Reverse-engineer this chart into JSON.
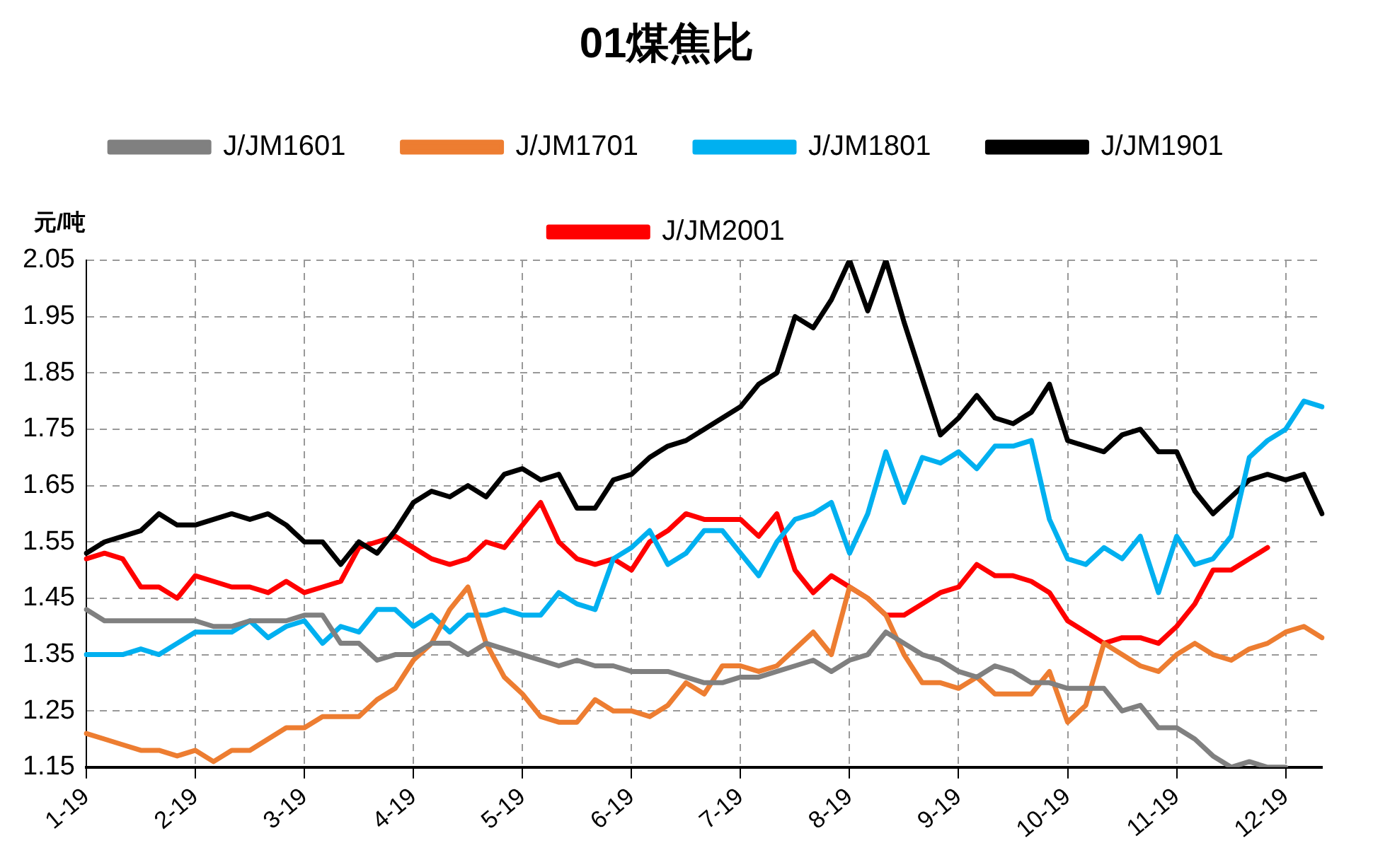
{
  "chart_data": {
    "type": "line",
    "title": "01煤焦比",
    "ylabel": "元/吨",
    "categories": [
      "1-19",
      null,
      null,
      null,
      null,
      null,
      "2-19",
      null,
      null,
      null,
      null,
      null,
      "3-19",
      null,
      null,
      null,
      null,
      null,
      "4-19",
      null,
      null,
      null,
      null,
      null,
      "5-19",
      null,
      null,
      null,
      null,
      null,
      "6-19",
      null,
      null,
      null,
      null,
      null,
      "7-19",
      null,
      null,
      null,
      null,
      null,
      "8-19",
      null,
      null,
      null,
      null,
      null,
      "9-19",
      null,
      null,
      null,
      null,
      null,
      "10-19",
      null,
      null,
      null,
      null,
      null,
      "11-19",
      null,
      null,
      null,
      null,
      null,
      "12-19",
      null,
      null
    ],
    "ylim": [
      1.15,
      2.05
    ],
    "yticks": [
      1.15,
      1.25,
      1.35,
      1.45,
      1.55,
      1.65,
      1.75,
      1.85,
      1.95,
      2.05
    ],
    "grid": true,
    "legend": "top",
    "series": [
      {
        "name": "J/JM1601",
        "color": "#808080",
        "values": [
          1.43,
          1.41,
          1.41,
          1.41,
          1.41,
          1.41,
          1.41,
          1.4,
          1.4,
          1.41,
          1.41,
          1.41,
          1.42,
          1.42,
          1.37,
          1.37,
          1.34,
          1.35,
          1.35,
          1.37,
          1.37,
          1.35,
          1.37,
          1.36,
          1.35,
          1.34,
          1.33,
          1.34,
          1.33,
          1.33,
          1.32,
          1.32,
          1.32,
          1.31,
          1.3,
          1.3,
          1.31,
          1.31,
          1.32,
          1.33,
          1.34,
          1.32,
          1.34,
          1.35,
          1.39,
          1.37,
          1.35,
          1.34,
          1.32,
          1.31,
          1.33,
          1.32,
          1.3,
          1.3,
          1.29,
          1.29,
          1.29,
          1.25,
          1.26,
          1.22,
          1.22,
          1.2,
          1.17,
          1.15,
          1.16,
          1.15,
          1.15,
          null,
          null
        ]
      },
      {
        "name": "J/JM1701",
        "color": "#ed7d31",
        "values": [
          1.21,
          1.2,
          1.19,
          1.18,
          1.18,
          1.17,
          1.18,
          1.16,
          1.18,
          1.18,
          1.2,
          1.22,
          1.22,
          1.24,
          1.24,
          1.24,
          1.27,
          1.29,
          1.34,
          1.37,
          1.43,
          1.47,
          1.37,
          1.31,
          1.28,
          1.24,
          1.23,
          1.23,
          1.27,
          1.25,
          1.25,
          1.24,
          1.26,
          1.3,
          1.28,
          1.33,
          1.33,
          1.32,
          1.33,
          1.36,
          1.39,
          1.35,
          1.47,
          1.45,
          1.42,
          1.35,
          1.3,
          1.3,
          1.29,
          1.31,
          1.28,
          1.28,
          1.28,
          1.32,
          1.23,
          1.26,
          1.37,
          1.35,
          1.33,
          1.32,
          1.35,
          1.37,
          1.35,
          1.34,
          1.36,
          1.37,
          1.39,
          1.4,
          1.38
        ]
      },
      {
        "name": "J/JM1801",
        "color": "#00b0f0",
        "values": [
          1.35,
          1.35,
          1.35,
          1.36,
          1.35,
          1.37,
          1.39,
          1.39,
          1.39,
          1.41,
          1.38,
          1.4,
          1.41,
          1.37,
          1.4,
          1.39,
          1.43,
          1.43,
          1.4,
          1.42,
          1.39,
          1.42,
          1.42,
          1.43,
          1.42,
          1.42,
          1.46,
          1.44,
          1.43,
          1.52,
          1.54,
          1.57,
          1.51,
          1.53,
          1.57,
          1.57,
          1.53,
          1.49,
          1.55,
          1.59,
          1.6,
          1.62,
          1.53,
          1.6,
          1.71,
          1.62,
          1.7,
          1.69,
          1.71,
          1.68,
          1.72,
          1.72,
          1.73,
          1.59,
          1.52,
          1.51,
          1.54,
          1.52,
          1.56,
          1.46,
          1.56,
          1.51,
          1.52,
          1.56,
          1.7,
          1.73,
          1.75,
          1.8,
          1.79
        ]
      },
      {
        "name": "J/JM1901",
        "color": "#000000",
        "values": [
          1.53,
          1.55,
          1.56,
          1.57,
          1.6,
          1.58,
          1.58,
          1.59,
          1.6,
          1.59,
          1.6,
          1.58,
          1.55,
          1.55,
          1.51,
          1.55,
          1.53,
          1.57,
          1.62,
          1.64,
          1.63,
          1.65,
          1.63,
          1.67,
          1.68,
          1.66,
          1.67,
          1.61,
          1.61,
          1.66,
          1.67,
          1.7,
          1.72,
          1.73,
          1.75,
          1.77,
          1.79,
          1.83,
          1.85,
          1.95,
          1.93,
          1.98,
          2.05,
          1.96,
          2.05,
          1.94,
          1.84,
          1.74,
          1.77,
          1.81,
          1.77,
          1.76,
          1.78,
          1.83,
          1.73,
          1.72,
          1.71,
          1.74,
          1.75,
          1.71,
          1.71,
          1.64,
          1.6,
          1.63,
          1.66,
          1.67,
          1.66,
          1.67,
          1.6
        ]
      },
      {
        "name": "J/JM2001",
        "color": "#ff0000",
        "values": [
          1.52,
          1.53,
          1.52,
          1.47,
          1.47,
          1.45,
          1.49,
          1.48,
          1.47,
          1.47,
          1.46,
          1.48,
          1.46,
          1.47,
          1.48,
          1.54,
          1.55,
          1.56,
          1.54,
          1.52,
          1.51,
          1.52,
          1.55,
          1.54,
          1.58,
          1.62,
          1.55,
          1.52,
          1.51,
          1.52,
          1.5,
          1.55,
          1.57,
          1.6,
          1.59,
          1.59,
          1.59,
          1.56,
          1.6,
          1.5,
          1.46,
          1.49,
          1.47,
          1.45,
          1.42,
          1.42,
          1.44,
          1.46,
          1.47,
          1.51,
          1.49,
          1.49,
          1.48,
          1.46,
          1.41,
          1.39,
          1.37,
          1.38,
          1.38,
          1.37,
          1.4,
          1.44,
          1.5,
          1.5,
          1.52,
          1.54,
          null,
          null,
          null
        ]
      }
    ]
  }
}
